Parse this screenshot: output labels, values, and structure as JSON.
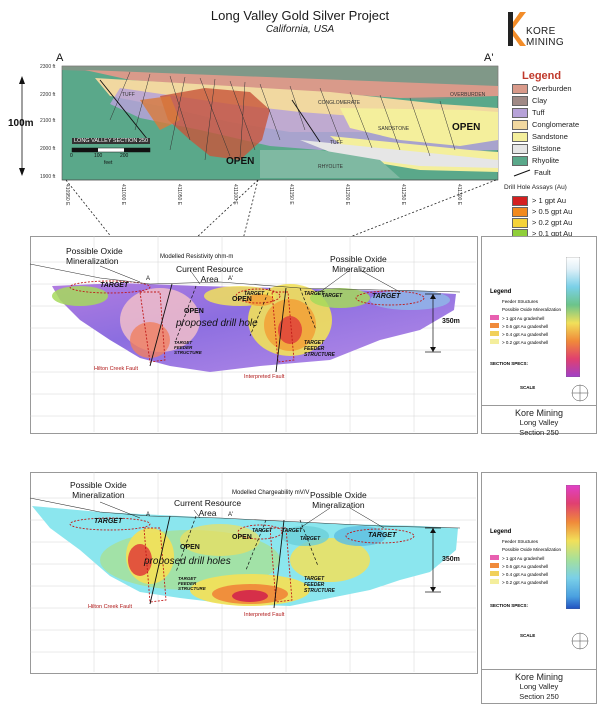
{
  "header": {
    "title": "Long Valley Gold Silver Project",
    "subtitle": "California, USA"
  },
  "logo": {
    "text": "KORE MINING",
    "icon": "kore-k-logo",
    "colors": {
      "orange": "#f28c28",
      "dark": "#222222"
    }
  },
  "top_section": {
    "label_left": "A",
    "label_right": "A'",
    "scale_text": "100m",
    "inset_title": "LONG VALLEY SECTION 250",
    "inset_ticks": [
      "0",
      "100",
      "200"
    ],
    "inset_unit": "feet",
    "open_labels": [
      "OPEN",
      "OPEN"
    ],
    "unit_labels": [
      "TUFF",
      "CONGLOMERATE",
      "SANDSTONE",
      "TUFF",
      "RHYOLITE",
      "OVERBURDEN"
    ],
    "elev_labels": [
      "2300 ft",
      "2200 ft",
      "2100 ft",
      "2000 ft",
      "1900 ft"
    ],
    "east_labels": [
      "410950 E",
      "411000 E",
      "411050 E",
      "411100 E",
      "411150 E",
      "411200 E",
      "411250 E",
      "411300 E"
    ]
  },
  "legend": {
    "title": "Legend",
    "units": [
      {
        "label": "Overburden",
        "color": "#d99a8a"
      },
      {
        "label": "Clay",
        "color": "#a08a86"
      },
      {
        "label": "Tuff",
        "color": "#b6a2d8"
      },
      {
        "label": "Conglomerate",
        "color": "#f1d8a0"
      },
      {
        "label": "Sandstone",
        "color": "#f4ef9c"
      },
      {
        "label": "Siltstone",
        "color": "#e6e6e6"
      },
      {
        "label": "Rhyolite",
        "color": "#5aa88a"
      }
    ],
    "fault_label": "Fault",
    "assay_title": "Drill Hole Assays (Au)",
    "assays": [
      {
        "label": "> 1 gpt Au",
        "color": "#d41f1f"
      },
      {
        "label": "> 0.5 gpt Au",
        "color": "#f28a1c"
      },
      {
        "label": "> 0.2 gpt Au",
        "color": "#f4d23a"
      },
      {
        "label": "> 0.1 gpt Au",
        "color": "#8fce3a"
      }
    ]
  },
  "panels": [
    {
      "model_label": "Modelled Resistivity ohm-m",
      "oxide_left": "Possible Oxide\nMineralization",
      "resource": "Current Resource\nArea",
      "oxide_right": "Possible Oxide\nMineralization",
      "targets": [
        "TARGET",
        "TARGET",
        "TARGET",
        "TARGET",
        "TARGET"
      ],
      "opens": [
        "OPEN",
        "OPEN"
      ],
      "proposed": "proposed drill hole",
      "feeders": [
        "TARGET\nFEEDER\nSTRUCTURE",
        "TARGET\nFEEDER\nSTRUCTURE"
      ],
      "fault_left": "Hilton Creek Fault",
      "fault_center": "Interpreted Fault",
      "depth": "350m",
      "sec_a": "A",
      "sec_a2": "A'",
      "side": {
        "legend_title": "Legend",
        "feeder": "Feeder Structures",
        "oxide": "Possible Oxide Mineralization",
        "assays": [
          "> 1 gpt Au gradeshell",
          "> 0.6 gpt Au gradeshell",
          "> 0.4 gpt Au gradeshell",
          "> 0.2 gpt Au gradeshell"
        ],
        "section_specs": "SECTION SPECS:",
        "scale": "SCALE",
        "company": "Kore Mining",
        "project": "Long Valley",
        "section": "Section 250"
      }
    },
    {
      "model_label": "Modelled Chargeability mV/V",
      "oxide_left": "Possible Oxide\nMineralization",
      "resource": "Current Resource\nArea",
      "oxide_right": "Possible Oxide\nMineralization",
      "targets": [
        "TARGET",
        "TARGET",
        "TARGET",
        "TARGET",
        "TARGET"
      ],
      "opens": [
        "OPEN",
        "OPEN"
      ],
      "proposed": "proposed drill holes",
      "feeders": [
        "TARGET\nFEEDER\nSTRUCTURE",
        "TARGET\nFEEDER\nSTRUCTURE"
      ],
      "fault_left": "Hilton Creek Fault",
      "fault_center": "Interpreted Fault",
      "depth": "350m",
      "sec_a": "A",
      "sec_a2": "A'",
      "side": {
        "legend_title": "Legend",
        "feeder": "Feeder Structures",
        "oxide": "Possible Oxide Mineralization",
        "assays": [
          "> 1 gpt Au gradeshell",
          "> 0.6 gpt Au gradeshell",
          "> 0.4 gpt Au gradeshell",
          "> 0.2 gpt Au gradeshell"
        ],
        "section_specs": "SECTION SPECS:",
        "scale": "SCALE",
        "company": "Kore Mining",
        "project": "Long Valley",
        "section": "Section 250"
      }
    }
  ]
}
